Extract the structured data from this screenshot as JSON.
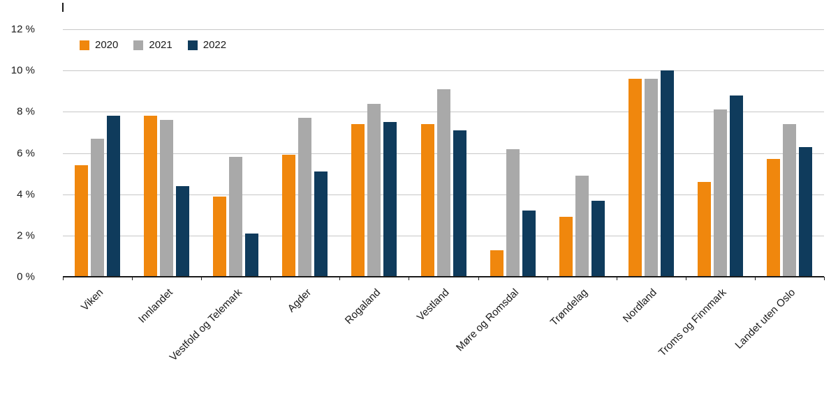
{
  "chart_data": {
    "type": "bar",
    "categories": [
      "Viken",
      "Innlandet",
      "Vestfold og Telemark",
      "Agder",
      "Rogaland",
      "Vestland",
      "Møre og Romsdal",
      "Trøndelag",
      "Nordland",
      "Troms og Finnmark",
      "Landet uten Oslo"
    ],
    "series": [
      {
        "name": "2020",
        "color": "#F0870D",
        "values": [
          5.4,
          7.8,
          3.9,
          5.9,
          7.4,
          7.4,
          1.3,
          2.9,
          9.6,
          4.6,
          5.7
        ]
      },
      {
        "name": "2021",
        "color": "#A9A9A9",
        "values": [
          6.7,
          7.6,
          5.8,
          7.7,
          8.4,
          9.1,
          6.2,
          4.9,
          9.6,
          8.1,
          7.4
        ]
      },
      {
        "name": "2022",
        "color": "#0F3B5C",
        "values": [
          7.8,
          4.4,
          2.1,
          5.1,
          7.5,
          7.1,
          3.2,
          3.7,
          10.0,
          8.8,
          6.3
        ]
      }
    ],
    "ylim": [
      0,
      12
    ],
    "ytick_step": 2,
    "ytick_labels": [
      "0 %",
      "2 %",
      "4 %",
      "6 %",
      "8 %",
      "10 %",
      "12 %"
    ],
    "value_suffix": " %",
    "grid": true,
    "legend_position": "top-left",
    "colors": {
      "gridline": "#C7C7C7",
      "axis": "#1A1A1A",
      "text": "#1A1A1A",
      "background": "#FFFFFF"
    }
  }
}
